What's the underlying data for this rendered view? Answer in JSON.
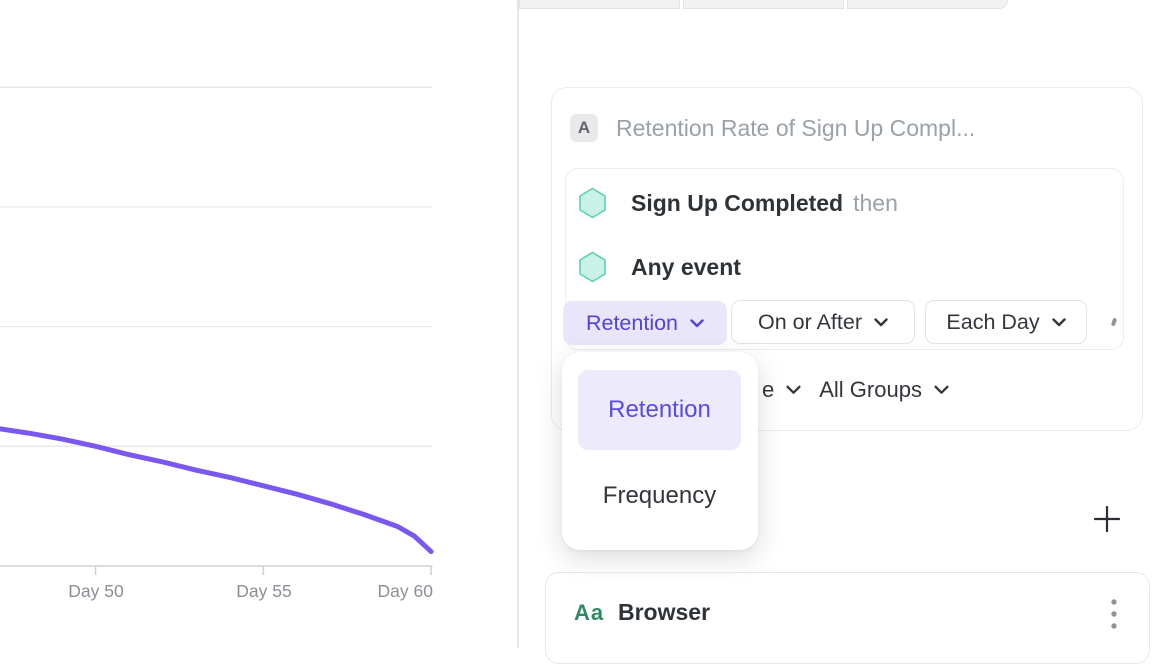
{
  "colors": {
    "accent_purple": "#5143d9",
    "accent_purple_bg": "#e9e5fb",
    "menu_selected_bg": "#edeafc",
    "line_purple": "#7a58f0",
    "event_hexagon_fill": "#c9f2e6",
    "event_hexagon_stroke": "#5fceb6",
    "property_green": "#2f8a62",
    "grid_grey": "#e7e7e9",
    "text_dark": "#2e3338",
    "text_grey": "#9aa1a9"
  },
  "chart_data": {
    "type": "line",
    "title": "",
    "xlabel": "Day",
    "ylabel": "",
    "y_axis_labels_visible": false,
    "x_visible_range_days": [
      47.2,
      60
    ],
    "assumed_y_unit": "%",
    "ylim": [
      0,
      45
    ],
    "gridline_values": [
      10,
      20,
      30,
      40
    ],
    "x_ticks": [
      {
        "label": "Day 50",
        "day": 50
      },
      {
        "label": "Day 55",
        "day": 55
      },
      {
        "label": "Day 60",
        "day": 60
      }
    ],
    "series": [
      {
        "name": "Retention",
        "color": "#7a58f0",
        "points": [
          {
            "day": 47.15,
            "value": 11.45
          },
          {
            "day": 48,
            "value": 11.1
          },
          {
            "day": 49,
            "value": 10.6
          },
          {
            "day": 50,
            "value": 10.0
          },
          {
            "day": 51,
            "value": 9.3
          },
          {
            "day": 52,
            "value": 8.7
          },
          {
            "day": 53,
            "value": 8.0
          },
          {
            "day": 54,
            "value": 7.4
          },
          {
            "day": 55,
            "value": 6.7
          },
          {
            "day": 56,
            "value": 6.0
          },
          {
            "day": 57,
            "value": 5.2
          },
          {
            "day": 58,
            "value": 4.3
          },
          {
            "day": 59,
            "value": 3.3
          },
          {
            "day": 59.5,
            "value": 2.5
          },
          {
            "day": 60,
            "value": 1.2
          }
        ]
      }
    ],
    "legend": null
  },
  "query_builder": {
    "label_badge": "A",
    "title_placeholder": "Retention Rate of Sign Up Compl...",
    "events": [
      {
        "name": "Sign Up Completed",
        "suffix": "then"
      },
      {
        "name": "Any event",
        "suffix": ""
      }
    ],
    "controls": [
      {
        "label": "Retention"
      },
      {
        "label": "On or After"
      },
      {
        "label": "Each Day"
      }
    ],
    "second_row": {
      "clipped_text": "e",
      "group_filter": "All Groups"
    }
  },
  "metric_menu": {
    "items": [
      {
        "label": "Retention",
        "selected": true
      },
      {
        "label": "Frequency",
        "selected": false
      }
    ]
  },
  "breakdown": {
    "add_label": "+",
    "property": {
      "icon_label": "Aa",
      "name": "Browser"
    }
  }
}
